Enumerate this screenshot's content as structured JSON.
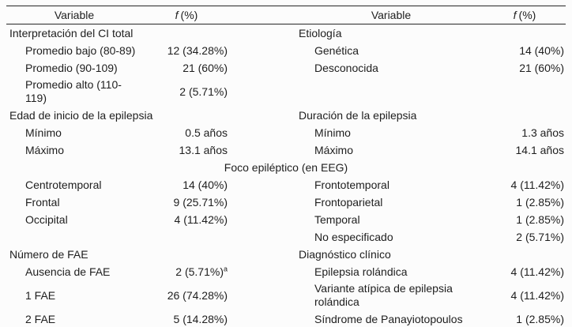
{
  "table": {
    "header": {
      "variable": "Variable",
      "f": "f",
      "pct": "(%)"
    },
    "span_row": "Foco epiléptico (en EEG)",
    "rows": [
      {
        "l_label": "Interpretación del CI total",
        "l_value": "",
        "r_label": "Etiología",
        "r_value": ""
      },
      {
        "l_label": "Promedio bajo (80-89)",
        "l_value": "12 (34.28%)",
        "r_label": "Genética",
        "r_value": "14 (40%)"
      },
      {
        "l_label": "Promedio (90-109)",
        "l_value": "21 (60%)",
        "r_label": "Desconocida",
        "r_value": "21 (60%)"
      },
      {
        "l_label": "Promedio alto (110-119)",
        "l_value": "2 (5.71%)",
        "r_label": "",
        "r_value": ""
      },
      {
        "l_label": "Edad de inicio de la epilepsia",
        "l_value": "",
        "r_label": "Duración de la epilepsia",
        "r_value": ""
      },
      {
        "l_label": "Mínimo",
        "l_value": "0.5 años",
        "r_label": "Mínimo",
        "r_value": "1.3 años"
      },
      {
        "l_label": "Máximo",
        "l_value": "13.1 años",
        "r_label": "Máximo",
        "r_value": "14.1 años"
      },
      {
        "l_label": "Centrotemporal",
        "l_value": "14 (40%)",
        "r_label": "Frontotemporal",
        "r_value": "4 (11.42%)"
      },
      {
        "l_label": "Frontal",
        "l_value": "9 (25.71%)",
        "r_label": "Frontoparietal",
        "r_value": "1 (2.85%)"
      },
      {
        "l_label": "Occipital",
        "l_value": "4 (11.42%)",
        "r_label": "Temporal",
        "r_value": "1 (2.85%)"
      },
      {
        "l_label": "",
        "l_value": "",
        "r_label": "No especificado",
        "r_value": "2 (5.71%)"
      },
      {
        "l_label": "Número de FAE",
        "l_value": "",
        "r_label": "Diagnóstico clínico",
        "r_value": ""
      },
      {
        "l_label": "Ausencia de FAE",
        "l_value": "2 (5.71%)",
        "l_sup": "a",
        "r_label": "Epilepsia rolándica",
        "r_value": "4 (11.42%)"
      },
      {
        "l_label": "1 FAE",
        "l_value": "26 (74.28%)",
        "r_label": "Variante atípica de epilepsia rolándica",
        "r_value": "4 (11.42%)"
      },
      {
        "l_label": "2 FAE",
        "l_value": "5 (14.28%)",
        "r_label": "Síndrome de Panayiotopoulos",
        "r_value": "1 (2.85%)"
      }
    ]
  }
}
